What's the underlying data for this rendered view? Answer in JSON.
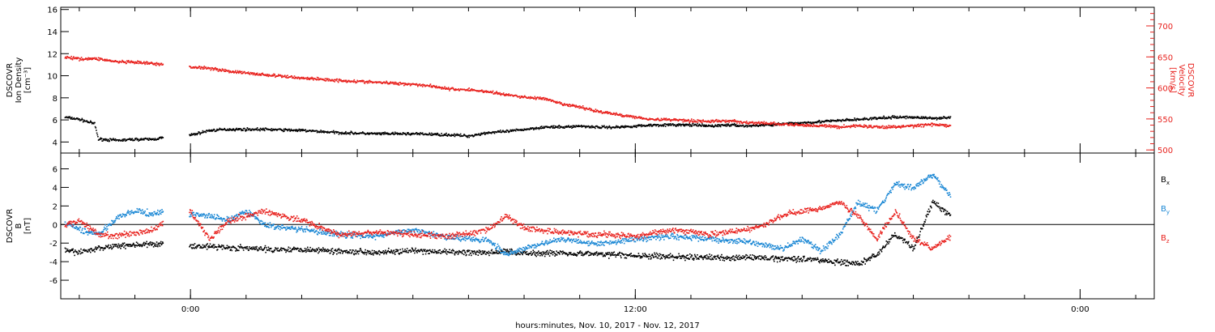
{
  "xlabel": "hours:minutes, Nov. 10, 2017 - Nov. 12, 2017",
  "x_ticks": [
    {
      "hour": 0,
      "label": "0:00"
    },
    {
      "hour": 12,
      "label": "12:00"
    },
    {
      "hour": 24,
      "label": "0:00"
    }
  ],
  "x_range_hours": [
    -3.5,
    26.0
  ],
  "colors": {
    "black": "#000000",
    "red": "#e8211d",
    "blue": "#1a87d4",
    "axis": "#000000"
  },
  "chart_data": [
    {
      "type": "scatter",
      "panel": "plasma",
      "ylabel": [
        "DSCOVR",
        "Ion Density",
        "[cm⁻³]"
      ],
      "ylim": [
        3,
        16.2
      ],
      "yticks": [
        4,
        6,
        8,
        10,
        12,
        14,
        16
      ],
      "y2label": [
        "DSCOVR",
        "Velocity",
        "[km/s]"
      ],
      "y2lim": [
        495,
        730
      ],
      "y2ticks": [
        500,
        550,
        600,
        650,
        700
      ],
      "series": [
        {
          "color": "black",
          "axis": "left",
          "x": [
            -3.4,
            -3.0,
            -2.6,
            -2.5,
            -2.4,
            -2.0,
            -1.5,
            -1.0,
            -0.7,
            -0.1,
            0.5,
            1.0,
            2.0,
            3.0,
            4.0,
            5.0,
            6.0,
            7.0,
            7.5,
            8.0,
            8.5,
            9.0,
            9.5,
            10.0,
            10.5,
            11.0,
            11.5,
            12.0,
            12.5,
            13.0,
            13.5,
            14.0,
            14.5,
            15.0,
            15.5,
            16.0,
            16.5,
            17.0,
            17.5,
            18.0,
            18.5,
            19.0,
            19.5,
            20.0,
            20.5
          ],
          "y": [
            6.3,
            6.1,
            5.7,
            4.3,
            4.3,
            4.2,
            4.3,
            4.3,
            4.5,
            4.6,
            5.1,
            5.2,
            5.2,
            5.1,
            4.9,
            4.8,
            4.8,
            4.7,
            4.6,
            4.9,
            5.0,
            5.2,
            5.4,
            5.4,
            5.5,
            5.4,
            5.4,
            5.5,
            5.6,
            5.6,
            5.6,
            5.5,
            5.6,
            5.5,
            5.6,
            5.7,
            5.8,
            5.9,
            6.0,
            6.1,
            6.2,
            6.3,
            6.3,
            6.2,
            6.3
          ]
        },
        {
          "color": "red",
          "axis": "right",
          "x": [
            -3.4,
            -3.0,
            -2.5,
            -2.0,
            -1.5,
            -1.0,
            -0.7,
            -0.1,
            0.5,
            1.0,
            2.0,
            3.0,
            4.0,
            5.0,
            6.0,
            6.5,
            7.0,
            7.5,
            8.0,
            8.5,
            9.0,
            9.5,
            10.0,
            10.5,
            11.0,
            11.5,
            12.0,
            12.5,
            13.0,
            13.5,
            14.0,
            14.5,
            15.0,
            15.5,
            16.0,
            16.5,
            17.0,
            17.5,
            18.0,
            18.5,
            19.0,
            19.5,
            20.0,
            20.5
          ],
          "y": [
            650,
            648,
            648,
            643,
            642,
            640,
            638,
            635,
            633,
            628,
            622,
            617,
            613,
            610,
            607,
            604,
            599,
            598,
            595,
            590,
            586,
            584,
            575,
            570,
            563,
            558,
            554,
            550,
            550,
            548,
            547,
            548,
            545,
            544,
            542,
            541,
            540,
            538,
            540,
            538,
            538,
            540,
            542,
            540
          ]
        }
      ]
    },
    {
      "type": "scatter",
      "panel": "magnetic",
      "ylabel": [
        "DSCOVR",
        "B",
        "[nT]"
      ],
      "ylim": [
        -8,
        7.7
      ],
      "yticks": [
        -6,
        -4,
        -2,
        0,
        2,
        4,
        6
      ],
      "zero_line": true,
      "series": [
        {
          "name": "Bx",
          "name_main": "B",
          "name_sub": "x",
          "color": "black",
          "x": [
            -3.4,
            -3.0,
            -2.5,
            -2.0,
            -1.5,
            -1.0,
            -0.7,
            -0.1,
            0.5,
            1.0,
            2.0,
            3.0,
            4.0,
            5.0,
            6.0,
            7.0,
            8.0,
            8.5,
            9.0,
            10.0,
            11.0,
            12.0,
            13.0,
            14.0,
            15.0,
            16.0,
            16.5,
            17.0,
            17.5,
            18.0,
            18.5,
            19.0,
            19.5,
            20.0,
            20.5
          ],
          "y": [
            -2.8,
            -2.9,
            -2.5,
            -2.2,
            -2.1,
            -2.1,
            -2.0,
            -2.2,
            -2.3,
            -2.4,
            -2.6,
            -2.6,
            -2.8,
            -2.9,
            -2.8,
            -2.9,
            -3.0,
            -2.8,
            -3.0,
            -3.0,
            -3.1,
            -3.3,
            -3.4,
            -3.5,
            -3.5,
            -3.6,
            -3.6,
            -3.8,
            -4.0,
            -4.2,
            -3.2,
            -1.0,
            -2.5,
            2.5,
            1.0
          ]
        },
        {
          "name": "By",
          "name_main": "B",
          "name_sub": "y",
          "color": "blue",
          "x": [
            -3.4,
            -3.0,
            -2.5,
            -2.0,
            -1.5,
            -1.0,
            -0.7,
            -0.1,
            0.5,
            1.0,
            1.5,
            2.0,
            3.0,
            4.0,
            5.0,
            6.0,
            7.0,
            8.0,
            8.5,
            9.0,
            10.0,
            11.0,
            12.0,
            13.0,
            14.0,
            15.0,
            15.5,
            16.0,
            16.5,
            17.0,
            17.5,
            18.0,
            18.5,
            19.0,
            19.5,
            20.0,
            20.5
          ],
          "y": [
            0.2,
            -0.5,
            -1.0,
            0.8,
            1.5,
            1.2,
            1.5,
            1.2,
            1.0,
            0.5,
            1.5,
            0.0,
            -0.5,
            -1.0,
            -1.2,
            -0.5,
            -1.3,
            -1.6,
            -3.2,
            -2.5,
            -1.5,
            -2.0,
            -1.5,
            -1.2,
            -1.5,
            -1.8,
            -2.2,
            -2.5,
            -1.5,
            -2.8,
            -1.0,
            2.5,
            1.5,
            4.5,
            4.0,
            5.5,
            3.0
          ]
        },
        {
          "name": "Bz",
          "name_main": "B",
          "name_sub": "z",
          "color": "red",
          "x": [
            -3.4,
            -3.0,
            -2.5,
            -2.0,
            -1.5,
            -1.0,
            -0.7,
            -0.1,
            0.5,
            1.0,
            2.0,
            3.0,
            4.0,
            5.0,
            6.0,
            7.0,
            8.0,
            8.5,
            9.0,
            10.0,
            11.0,
            12.0,
            13.0,
            14.0,
            15.0,
            15.5,
            16.0,
            16.5,
            17.0,
            17.5,
            18.0,
            18.5,
            19.0,
            19.5,
            20.0,
            20.5
          ],
          "y": [
            0.0,
            0.5,
            -1.0,
            -1.2,
            -0.8,
            -0.5,
            0.5,
            2.0,
            -1.5,
            0.5,
            1.5,
            0.5,
            -1.0,
            -0.8,
            -1.0,
            -1.2,
            -0.5,
            1.0,
            -0.3,
            -0.8,
            -1.0,
            -1.2,
            -0.5,
            -1.0,
            -0.5,
            0.0,
            1.2,
            1.5,
            1.8,
            2.5,
            1.0,
            -1.5,
            1.5,
            -1.5,
            -2.5,
            -1.2
          ]
        }
      ]
    }
  ]
}
